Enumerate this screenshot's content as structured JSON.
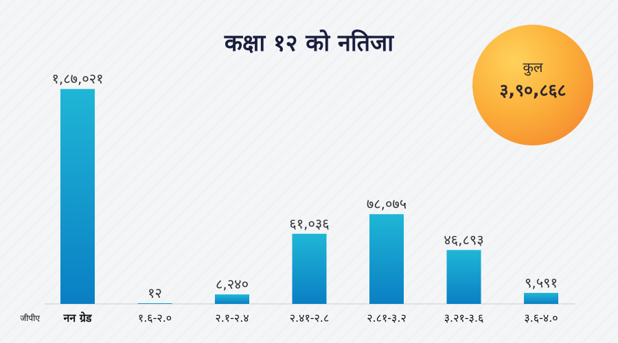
{
  "title": "कक्षा १२ को नतिजा",
  "total_badge": {
    "label": "कुल",
    "value": "३,९०,८६८"
  },
  "axis_prefix": "जीपीए",
  "chart_data": {
    "type": "bar",
    "title": "कक्षा १२ को नतिजा",
    "categories": [
      "नन ग्रेड",
      "१.६-२.०",
      "२.१-२.४",
      "२.४१-२.८",
      "२.८१-३.२",
      "३.२१-३.६",
      "३.६-४.०"
    ],
    "values": [
      187021,
      12,
      8240,
      61036,
      78075,
      46893,
      9591
    ],
    "data_labels": [
      "१,८७,०२१",
      "१२",
      "८,२४०",
      "६१,०३६",
      "७८,०७५",
      "४६,८९३",
      "९,५९१"
    ],
    "ylim": [
      0,
      200000
    ],
    "grid": false,
    "colors": {
      "bar_top": "#1fb6d6",
      "bar_bottom": "#0a7fc4"
    }
  }
}
